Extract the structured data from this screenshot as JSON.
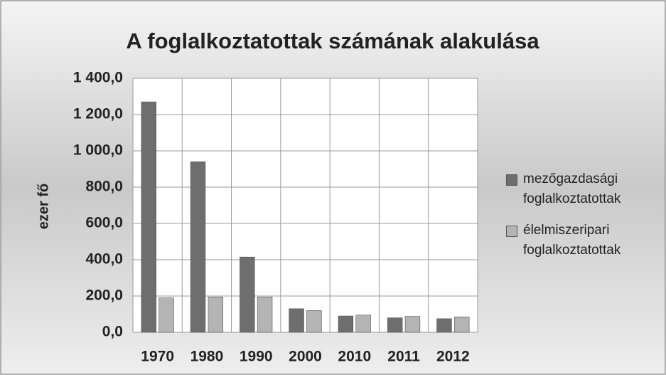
{
  "chart_data": {
    "type": "bar",
    "title": "A foglalkoztatottak számának alakulása",
    "y_label": "ezer fő",
    "categories": [
      "1970",
      "1980",
      "1990",
      "2000",
      "2010",
      "2011",
      "2012"
    ],
    "series": [
      {
        "name": "mezőgazdasági foglalkoztatottak",
        "color": "#6e6e6e",
        "values": [
          1270,
          940,
          415,
          130,
          90,
          80,
          75
        ]
      },
      {
        "name": "élelmiszeripari foglalkoztatottak",
        "color": "#b4b4b4",
        "values": [
          190,
          195,
          195,
          120,
          95,
          88,
          85
        ]
      }
    ],
    "ylim": [
      0,
      1400
    ],
    "yticks": [
      {
        "value": 0,
        "label": "0,0"
      },
      {
        "value": 200,
        "label": "200,0"
      },
      {
        "value": 400,
        "label": "400,0"
      },
      {
        "value": 600,
        "label": "600,0"
      },
      {
        "value": 800,
        "label": "800,0"
      },
      {
        "value": 1000,
        "label": "1 000,0"
      },
      {
        "value": 1200,
        "label": "1 200,0"
      },
      {
        "value": 1400,
        "label": "1 400,0"
      }
    ],
    "grid": true,
    "legend": "right"
  }
}
